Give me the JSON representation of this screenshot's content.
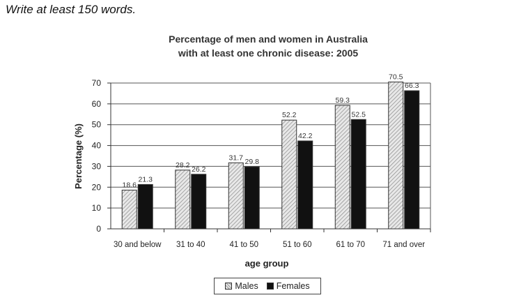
{
  "instruction": "Write at least 150 words.",
  "chart_data": {
    "type": "bar",
    "title_line1": "Percentage of men and women in Australia",
    "title_line2": "with at least one chronic disease: 2005",
    "xlabel": "age group",
    "ylabel": "Percentage (%)",
    "ylim": [
      0,
      70
    ],
    "yticks": [
      0,
      10,
      20,
      30,
      40,
      50,
      60,
      70
    ],
    "grid": true,
    "legend_position": "bottom",
    "categories": [
      "30 and below",
      "31 to 40",
      "41 to 50",
      "51 to 60",
      "61 to 70",
      "71 and over"
    ],
    "series": [
      {
        "name": "Males",
        "values": [
          18.6,
          28.2,
          31.7,
          52.2,
          59.3,
          70.5
        ],
        "color": "#d9d9d9",
        "pattern": "hatched"
      },
      {
        "name": "Females",
        "values": [
          21.3,
          26.2,
          29.8,
          42.2,
          52.5,
          66.3
        ],
        "color": "#111111"
      }
    ]
  }
}
